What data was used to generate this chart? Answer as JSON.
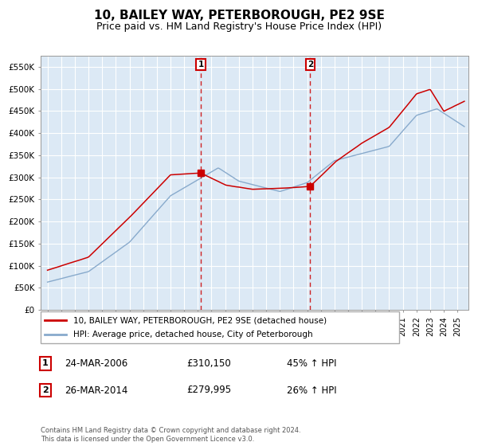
{
  "title": "10, BAILEY WAY, PETERBOROUGH, PE2 9SE",
  "subtitle": "Price paid vs. HM Land Registry's House Price Index (HPI)",
  "title_fontsize": 11,
  "subtitle_fontsize": 9,
  "background_color": "#ffffff",
  "plot_bg_color": "#dce9f5",
  "grid_color": "#ffffff",
  "ylim": [
    0,
    575000
  ],
  "yticks": [
    0,
    50000,
    100000,
    150000,
    200000,
    250000,
    300000,
    350000,
    400000,
    450000,
    500000,
    550000
  ],
  "ytick_labels": [
    "£0",
    "£50K",
    "£100K",
    "£150K",
    "£200K",
    "£250K",
    "£300K",
    "£350K",
    "£400K",
    "£450K",
    "£500K",
    "£550K"
  ],
  "sale1_x": 2006.23,
  "sale1_y": 310150,
  "sale2_x": 2014.23,
  "sale2_y": 279995,
  "legend_line1": "10, BAILEY WAY, PETERBOROUGH, PE2 9SE (detached house)",
  "legend_line2": "HPI: Average price, detached house, City of Peterborough",
  "table_row1": [
    "1",
    "24-MAR-2006",
    "£310,150",
    "45% ↑ HPI"
  ],
  "table_row2": [
    "2",
    "26-MAR-2014",
    "£279,995",
    "26% ↑ HPI"
  ],
  "footer": "Contains HM Land Registry data © Crown copyright and database right 2024.\nThis data is licensed under the Open Government Licence v3.0.",
  "red_color": "#cc0000",
  "blue_color": "#88aacc",
  "dashed_color": "#cc0000",
  "xlim_left": 1994.5,
  "xlim_right": 2025.8
}
